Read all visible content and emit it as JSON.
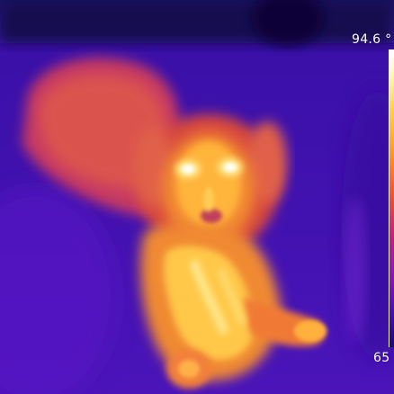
{
  "thermal_view": {
    "subject": "dog-thermal-image",
    "palette": "iron",
    "scale_max_label": "94.6 °",
    "scale_min_label": "65"
  },
  "colors": {
    "background_cold": "#2a0a8a",
    "mid_purple": "#7a1cc8",
    "warm_magenta": "#d23b7a",
    "warm_orange": "#ff8a2a",
    "hot_yellow": "#ffd84a",
    "hottest_white": "#ffffff"
  }
}
